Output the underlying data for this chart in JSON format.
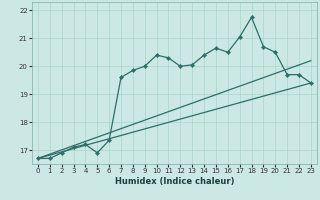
{
  "title": "",
  "xlabel": "Humidex (Indice chaleur)",
  "ylabel": "",
  "bg_color": "#cce8e4",
  "grid_color": "#aad4ce",
  "line_color": "#2d6e68",
  "ylim": [
    16.5,
    22.3
  ],
  "xlim": [
    -0.5,
    23.5
  ],
  "yticks": [
    17,
    18,
    19,
    20,
    21,
    22
  ],
  "xticks": [
    0,
    1,
    2,
    3,
    4,
    5,
    6,
    7,
    8,
    9,
    10,
    11,
    12,
    13,
    14,
    15,
    16,
    17,
    18,
    19,
    20,
    21,
    22,
    23
  ],
  "line1_x": [
    0,
    1,
    2,
    3,
    4,
    5,
    6,
    7,
    8,
    9,
    10,
    11,
    12,
    13,
    14,
    15,
    16,
    17,
    18,
    19,
    20,
    21,
    22,
    23
  ],
  "line1_y": [
    16.7,
    16.7,
    16.9,
    17.1,
    17.2,
    16.9,
    17.35,
    19.6,
    19.85,
    20.0,
    20.4,
    20.3,
    20.0,
    20.05,
    20.4,
    20.65,
    20.5,
    21.05,
    21.75,
    20.7,
    20.5,
    19.7,
    19.7,
    19.4
  ],
  "line2_x": [
    0,
    23
  ],
  "line2_y": [
    16.7,
    19.4
  ],
  "line3_x": [
    0,
    23
  ],
  "line3_y": [
    16.7,
    20.2
  ]
}
